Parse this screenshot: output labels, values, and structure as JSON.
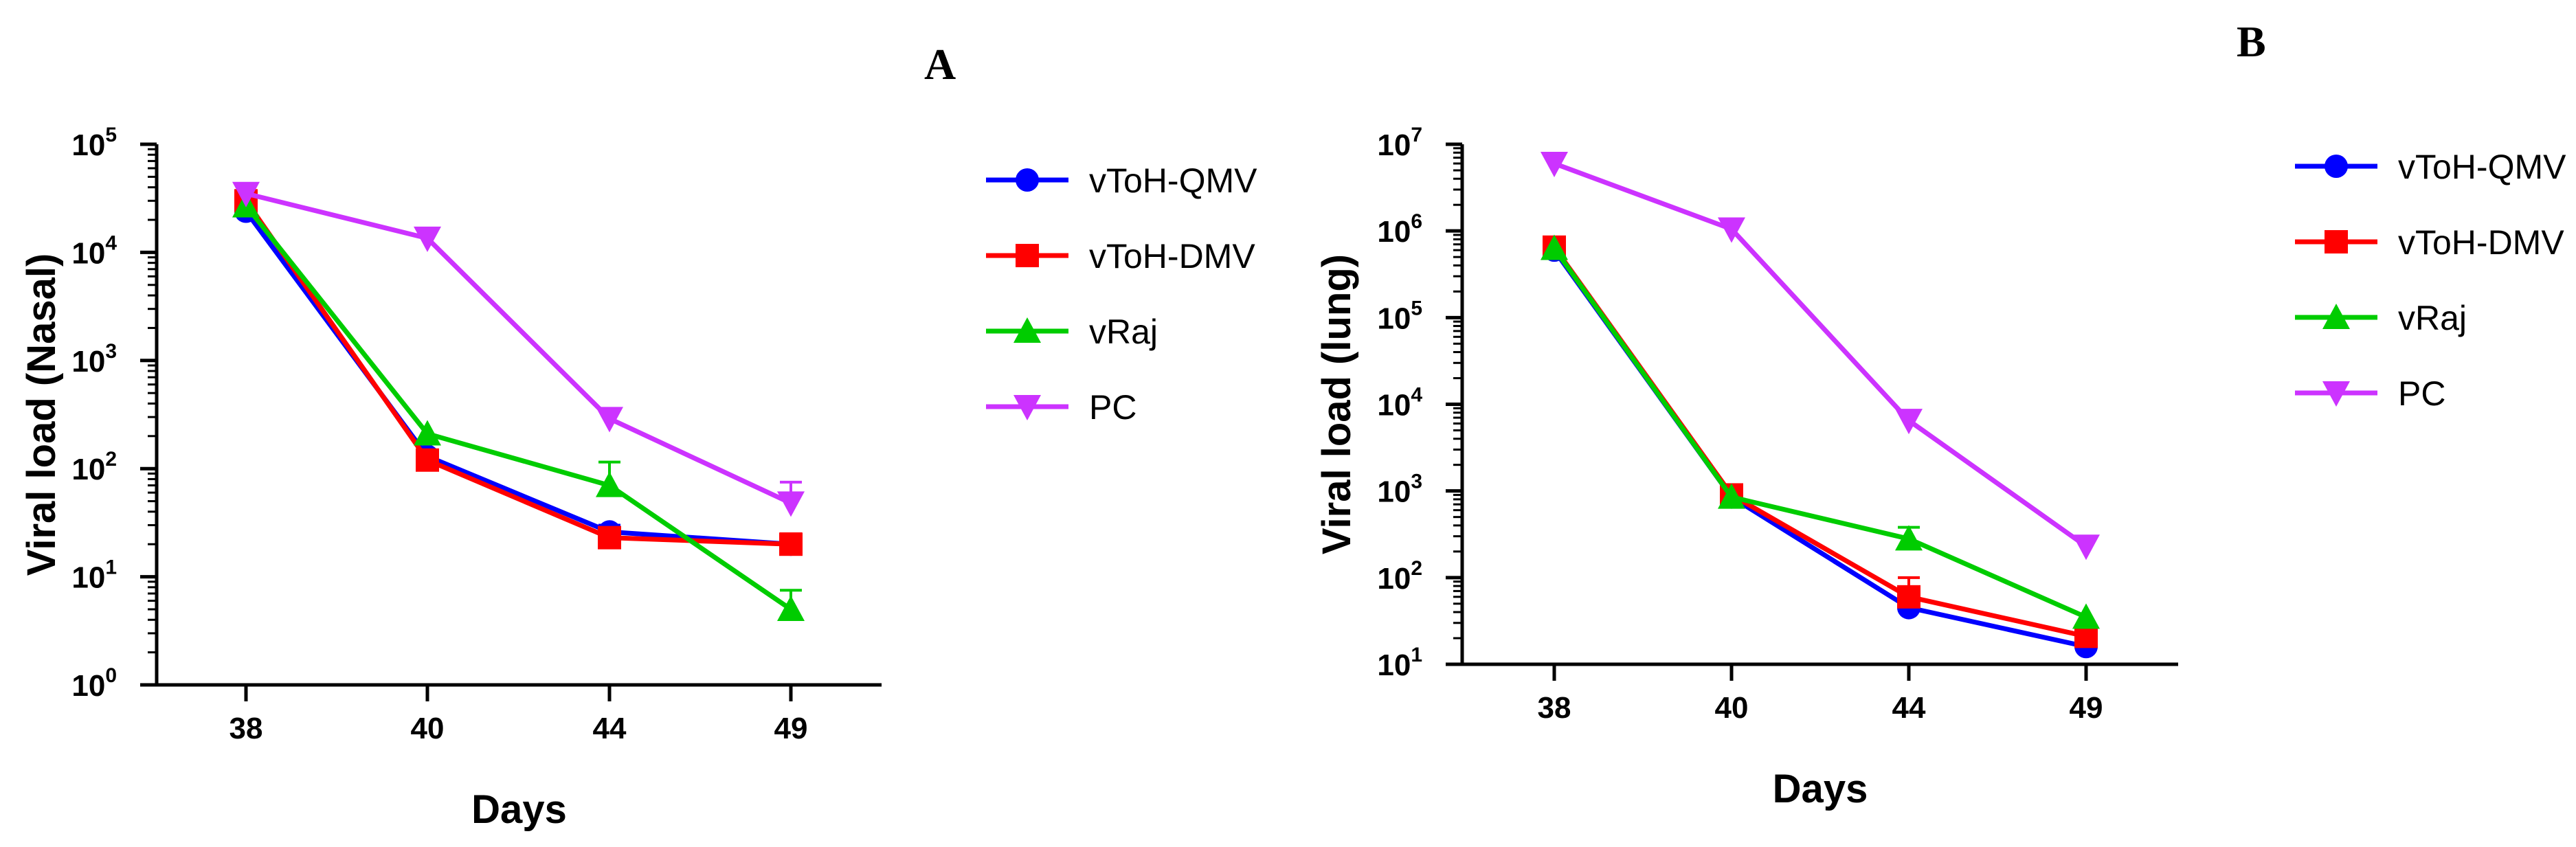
{
  "chart_data": [
    {
      "type": "line",
      "panel": "A",
      "xlabel": "Days",
      "ylabel": "Viral load (Nasal)",
      "yscale": "log",
      "ylim": [
        1,
        100000
      ],
      "categories": [
        "38",
        "40",
        "44",
        "49"
      ],
      "yticks": [
        {
          "base": "10",
          "exp": "0",
          "value": 1
        },
        {
          "base": "10",
          "exp": "1",
          "value": 10
        },
        {
          "base": "10",
          "exp": "2",
          "value": 100
        },
        {
          "base": "10",
          "exp": "3",
          "value": 1000
        },
        {
          "base": "10",
          "exp": "4",
          "value": 10000
        },
        {
          "base": "10",
          "exp": "5",
          "value": 100000
        }
      ],
      "series": [
        {
          "name": "vToH-QMV",
          "color": "#0000ff",
          "marker": "circle",
          "values": [
            24000,
            130,
            26,
            20
          ],
          "err_upper": [
            null,
            null,
            30,
            24
          ]
        },
        {
          "name": "vToH-DMV",
          "color": "#ff0000",
          "marker": "square",
          "values": [
            30000,
            120,
            23,
            20
          ],
          "err_upper": [
            null,
            null,
            null,
            25
          ]
        },
        {
          "name": "vRaj",
          "color": "#00cc00",
          "marker": "triangle-up",
          "values": [
            27000,
            210,
            70,
            5
          ],
          "err_upper": [
            null,
            null,
            115,
            7.5
          ]
        },
        {
          "name": "PC",
          "color": "#cc33ff",
          "marker": "triangle-down",
          "values": [
            35000,
            13500,
            290,
            48
          ],
          "err_upper": [
            null,
            null,
            null,
            75
          ]
        }
      ]
    },
    {
      "type": "line",
      "panel": "B",
      "xlabel": "Days",
      "ylabel": "Viral load (lung)",
      "yscale": "log",
      "ylim": [
        10,
        10000000
      ],
      "categories": [
        "38",
        "40",
        "44",
        "49"
      ],
      "yticks": [
        {
          "base": "10",
          "exp": "1",
          "value": 10
        },
        {
          "base": "10",
          "exp": "2",
          "value": 100
        },
        {
          "base": "10",
          "exp": "3",
          "value": 1000
        },
        {
          "base": "10",
          "exp": "4",
          "value": 10000
        },
        {
          "base": "10",
          "exp": "5",
          "value": 100000
        },
        {
          "base": "10",
          "exp": "6",
          "value": 1000000
        },
        {
          "base": "10",
          "exp": "7",
          "value": 10000000
        }
      ],
      "series": [
        {
          "name": "vToH-QMV",
          "color": "#0000ff",
          "marker": "circle",
          "values": [
            600000,
            850,
            45,
            16
          ],
          "err_upper": [
            null,
            null,
            null,
            null
          ]
        },
        {
          "name": "vToH-DMV",
          "color": "#ff0000",
          "marker": "square",
          "values": [
            650000,
            900,
            60,
            21
          ],
          "err_upper": [
            null,
            null,
            100,
            25
          ]
        },
        {
          "name": "vRaj",
          "color": "#00cc00",
          "marker": "triangle-up",
          "values": [
            630000,
            850,
            280,
            35
          ],
          "err_upper": [
            null,
            null,
            380,
            null
          ]
        },
        {
          "name": "PC",
          "color": "#cc33ff",
          "marker": "triangle-down",
          "values": [
            6000000,
            1050000,
            6500,
            230
          ],
          "err_upper": [
            null,
            null,
            null,
            null
          ]
        }
      ]
    }
  ]
}
